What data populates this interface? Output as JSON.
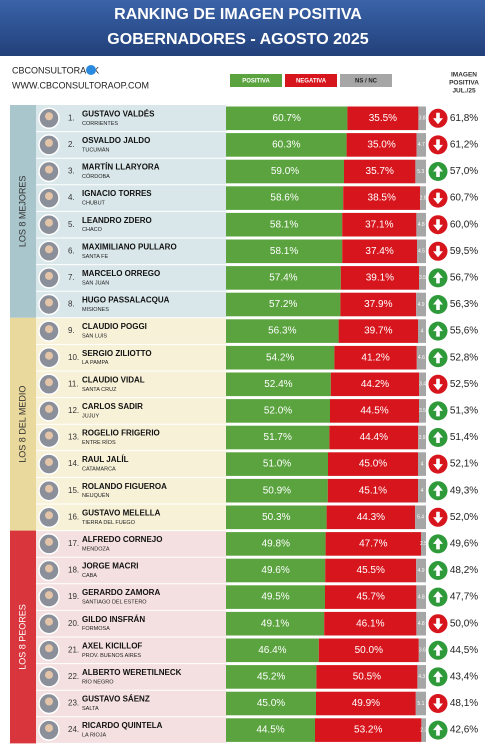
{
  "chart_data": {
    "type": "bar",
    "orientation": "horizontal",
    "stacked": true,
    "title": "RANKING DE IMAGEN POSITIVA",
    "subtitle": "GOBERNADORES - AGOSTO 2025",
    "brand": "CBCONSULTORAOK",
    "website": "WWW.CBCONSULTORAOP.COM",
    "groups": [
      {
        "label": "LOS 8 MEJORES",
        "color": "#a9c6cd",
        "background": "#d9e7ea"
      },
      {
        "label": "LOS 8 DEL MEDIO",
        "color": "#ead99c",
        "background": "#f7f1d8"
      },
      {
        "label": "LOS 8 PEORES",
        "color": "#d8353c",
        "background": "#f4e0e0"
      }
    ],
    "ranks": [
      "1.",
      "2.",
      "3.",
      "4.",
      "5.",
      "6.",
      "7.",
      "8.",
      "9.",
      "10.",
      "11.",
      "12.",
      "13.",
      "14.",
      "15.",
      "16.",
      "17.",
      "18.",
      "19.",
      "20.",
      "21.",
      "22.",
      "23.",
      "24."
    ],
    "categories": [
      "GUSTAVO VALDÉS",
      "OSVALDO JALDO",
      "MARTÍN LLARYORA",
      "IGNACIO TORRES",
      "LEANDRO ZDERO",
      "MAXIMILIANO PULLARO",
      "MARCELO ORREGO",
      "HUGO PASSALACQUA",
      "CLAUDIO POGGI",
      "SERGIO ZILIOTTO",
      "CLAUDIO VIDAL",
      "CARLOS SADIR",
      "ROGELIO FRIGERIO",
      "RAUL JALÍL",
      "ROLANDO FIGUEROA",
      "GUSTAVO MELELLA",
      "ALFREDO CORNEJO",
      "JORGE MACRI",
      "GERARDO ZAMORA",
      "GILDO INSFRÁN",
      "AXEL KICILLOF",
      "ALBERTO WERETILNECK",
      "GUSTAVO SÁENZ",
      "RICARDO QUINTELA"
    ],
    "provinces": [
      "CORRIENTES",
      "TUCUMÁN",
      "CÓRDOBA",
      "CHUBUT",
      "CHACO",
      "SANTA FE",
      "SAN JUAN",
      "MISIONES",
      "SAN LUIS",
      "LA PAMPA",
      "SANTA CRUZ",
      "JUJUY",
      "ENTRE RÍOS",
      "CATAMARCA",
      "NEUQUÉN",
      "TIERRA DEL FUEGO",
      "MENDOZA",
      "CABA",
      "SANTIAGO DEL ESTERO",
      "FORMOSA",
      "PROV. BUENOS AIRES",
      "RÍO NEGRO",
      "SALTA",
      "LA RIOJA"
    ],
    "xlim": [
      0,
      100
    ],
    "series": [
      {
        "name": "POSITIVA",
        "color": "#5aa33f",
        "values": [
          60.7,
          60.3,
          59.0,
          58.6,
          58.1,
          58.1,
          57.4,
          57.2,
          56.3,
          54.2,
          52.4,
          52.0,
          51.7,
          51.0,
          50.9,
          50.3,
          49.8,
          49.6,
          49.5,
          49.1,
          46.4,
          45.2,
          45.0,
          44.5
        ],
        "value_labels": [
          "60.7%",
          "60.3%",
          "59.0%",
          "58.6%",
          "58.1%",
          "58.1%",
          "57.4%",
          "57.2%",
          "56.3%",
          "54.2%",
          "52.4%",
          "52.0%",
          "51.7%",
          "51.0%",
          "50.9%",
          "50.3%",
          "49.8%",
          "49.6%",
          "49.5%",
          "49.1%",
          "46.4%",
          "45.2%",
          "45.0%",
          "44.5%"
        ]
      },
      {
        "name": "NEGATIVA",
        "color": "#d7151d",
        "values": [
          35.5,
          35.0,
          35.7,
          38.5,
          37.1,
          37.4,
          39.1,
          37.9,
          39.7,
          41.2,
          44.2,
          44.5,
          44.4,
          45.0,
          45.1,
          44.3,
          47.7,
          45.5,
          45.7,
          46.1,
          50.0,
          50.5,
          49.9,
          53.2
        ],
        "value_labels": [
          "35.5%",
          "35.0%",
          "35.7%",
          "38.5%",
          "37.1%",
          "37.4%",
          "39.1%",
          "37.9%",
          "39.7%",
          "41.2%",
          "44.2%",
          "44.5%",
          "44.4%",
          "45.0%",
          "45.1%",
          "44.3%",
          "47.7%",
          "45.5%",
          "45.7%",
          "46.1%",
          "50.0%",
          "50.5%",
          "49.9%",
          "53.2%"
        ]
      },
      {
        "name": "NS / NC",
        "color": "#a6a6a6",
        "values": [
          3.8,
          4.7,
          5.3,
          2.9,
          4.8,
          4.5,
          3.5,
          4.9,
          4.0,
          4.6,
          3.4,
          3.5,
          3.9,
          4.0,
          4.0,
          5.4,
          2.5,
          4.9,
          4.8,
          4.8,
          3.6,
          4.3,
          5.1,
          2.3
        ]
      }
    ],
    "trend": [
      "down",
      "down",
      "up",
      "down",
      "down",
      "down",
      "up",
      "up",
      "up",
      "up",
      "down",
      "up",
      "up",
      "down",
      "up",
      "down",
      "up",
      "up",
      "up",
      "down",
      "up",
      "up",
      "down",
      "up"
    ],
    "trend_colors": {
      "up": "#2f9a3a",
      "down": "#d7151d"
    },
    "july": {
      "title_lines": [
        "IMAGEN",
        "POSITIVA",
        "JUL./25"
      ],
      "values": [
        61.8,
        61.2,
        57.0,
        60.7,
        60.0,
        59.5,
        56.7,
        56.3,
        55.6,
        52.8,
        52.5,
        51.3,
        51.4,
        52.1,
        49.3,
        52.0,
        49.6,
        48.2,
        47.7,
        50.0,
        44.5,
        43.4,
        48.1,
        42.6
      ],
      "value_labels": [
        "61,8%",
        "61,2%",
        "57,0%",
        "60,7%",
        "60,0%",
        "59,5%",
        "56,7%",
        "56,3%",
        "55,6%",
        "52,8%",
        "52,5%",
        "51,3%",
        "51,4%",
        "52,1%",
        "49,3%",
        "52,0%",
        "49,6%",
        "48,2%",
        "47,7%",
        "50,0%",
        "44,5%",
        "43,4%",
        "48,1%",
        "42,6%"
      ]
    }
  }
}
